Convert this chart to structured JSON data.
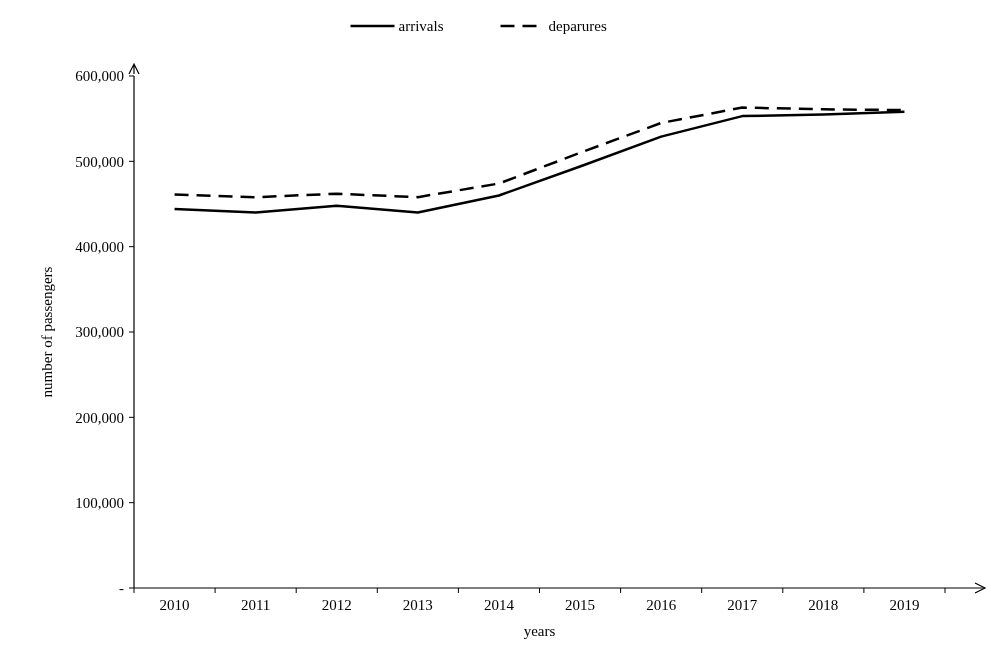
{
  "chart_data": {
    "type": "line",
    "xlabel": "years",
    "ylabel": "number of passengers",
    "categories": [
      "2010",
      "2011",
      "2012",
      "2013",
      "2014",
      "2015",
      "2016",
      "2017",
      "2018",
      "2019"
    ],
    "series": [
      {
        "name": "arrivals",
        "color": "#000000",
        "line_style": "solid",
        "values": [
          444000,
          440000,
          448000,
          440000,
          460000,
          494000,
          529000,
          553000,
          555000,
          558000
        ]
      },
      {
        "name": "deparures",
        "color": "#000000",
        "line_style": "dashed",
        "values": [
          461000,
          458000,
          462000,
          458000,
          474000,
          510000,
          545000,
          563000,
          561000,
          560000
        ]
      }
    ],
    "ylim": [
      0,
      600000
    ],
    "yticks": [
      {
        "value": 0,
        "label": "-"
      },
      {
        "value": 100000,
        "label": "100,000"
      },
      {
        "value": 200000,
        "label": "200,000"
      },
      {
        "value": 300000,
        "label": "300,000"
      },
      {
        "value": 400000,
        "label": "400,000"
      },
      {
        "value": 500000,
        "label": "500,000"
      },
      {
        "value": 600000,
        "label": "600,000"
      }
    ],
    "grid": false,
    "legend": "top",
    "marker": "none"
  }
}
